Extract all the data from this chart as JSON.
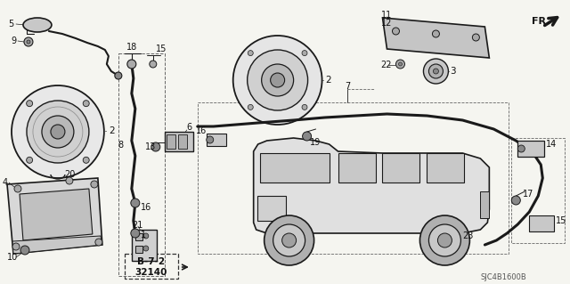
{
  "bg_color": "#f5f5f0",
  "line_color": "#1a1a1a",
  "text_color": "#111111",
  "diagram_code": "SJC4B1600B",
  "fig_w": 6.4,
  "fig_h": 3.19,
  "dpi": 100
}
